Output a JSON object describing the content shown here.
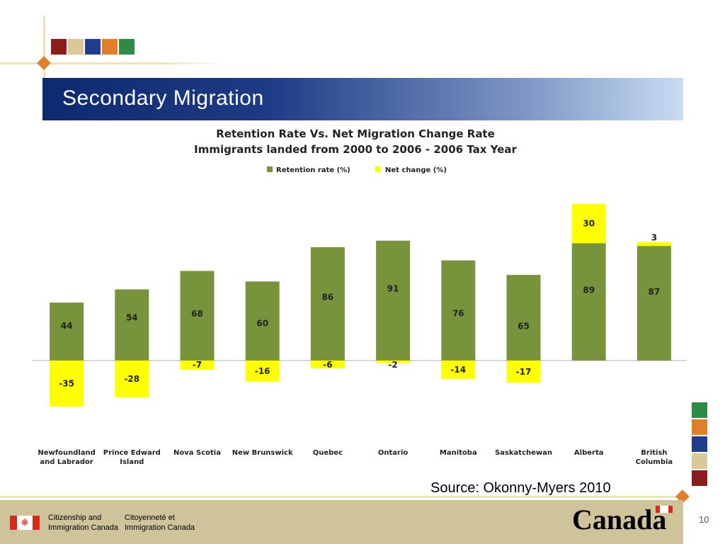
{
  "slide": {
    "title": "Secondary Migration",
    "source": "Source: Okonny-Myers 2010",
    "page_number": "10"
  },
  "decor": {
    "swatch_colors": [
      "#8b1c1c",
      "#d9c99a",
      "#1f3f8c",
      "#e07f2a",
      "#2e8b46"
    ]
  },
  "footer": {
    "dept_en": [
      "Citizenship and",
      "Immigration Canada"
    ],
    "dept_fr": [
      "Citoyenneté et",
      "Immigration Canada"
    ],
    "wordmark": "Canada"
  },
  "chart_data": {
    "type": "bar",
    "title": [
      "Retention Rate Vs. Net Migration Change Rate",
      "Immigrants landed from 2000 to 2006 - 2006 Tax Year"
    ],
    "legend_position": "top-center",
    "categories": [
      [
        "Newfoundland",
        "and Labrador"
      ],
      [
        "Prince Edward",
        "Island"
      ],
      [
        "Nova Scotia"
      ],
      [
        "New Brunswick"
      ],
      [
        "Quebec"
      ],
      [
        "Ontario"
      ],
      [
        "Manitoba"
      ],
      [
        "Saskatchewan"
      ],
      [
        "Alberta"
      ],
      [
        "British",
        "Columbia"
      ]
    ],
    "series": [
      {
        "name": "Retention rate (%)",
        "color": "#77933c",
        "values": [
          44,
          54,
          68,
          60,
          86,
          91,
          76,
          65,
          89,
          87
        ]
      },
      {
        "name": "Net change (%)",
        "color": "#ffff00",
        "values": [
          -35,
          -28,
          -7,
          -16,
          -6,
          -2,
          -14,
          -17,
          30,
          3
        ]
      }
    ],
    "stacked": true,
    "axes_visible": false,
    "grid": false
  }
}
